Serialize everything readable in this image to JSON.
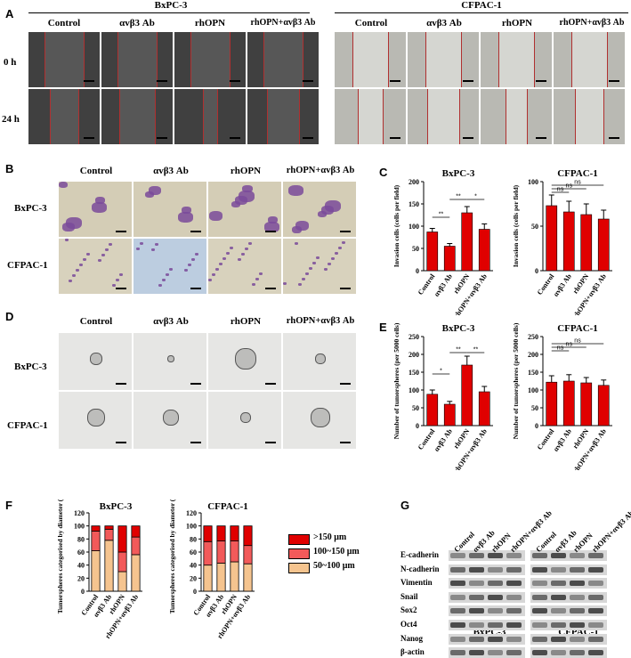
{
  "panel_letters": [
    "A",
    "B",
    "C",
    "D",
    "E",
    "F",
    "G"
  ],
  "panelA": {
    "groups": [
      {
        "cell_line": "BxPC-3",
        "conditions": [
          "Control",
          "αvβ3 Ab",
          "rhOPN",
          "rhOPN+αvβ3 Ab"
        ]
      },
      {
        "cell_line": "CFPAC-1",
        "conditions": [
          "Control",
          "αvβ3 Ab",
          "rhOPN",
          "rhOPN+αvβ3 Ab"
        ]
      }
    ],
    "rows": [
      "0 h",
      "24 h"
    ]
  },
  "panelB": {
    "conditions": [
      "Control",
      "αvβ3 Ab",
      "rhOPN",
      "rhOPN+αvβ3 Ab"
    ],
    "rows": [
      "BxPC-3",
      "CFPAC-1"
    ]
  },
  "panelD": {
    "conditions": [
      "Control",
      "αvβ3 Ab",
      "rhOPN",
      "rhOPN+αvβ3 Ab"
    ],
    "rows": [
      "BxPC-3",
      "CFPAC-1"
    ]
  },
  "panelG": {
    "proteins": [
      "E-cadherin",
      "N-cadherin",
      "Vimentin",
      "Snail",
      "Sox2",
      "Oct4",
      "Nanog",
      "β-actin"
    ],
    "lanes": [
      "Control",
      "αvβ3 Ab",
      "rhOPN",
      "rhOPN+αvβ3 Ab"
    ],
    "cell_lines": [
      "BxPC-3",
      "CFPAC-1"
    ]
  },
  "chart_data": [
    {
      "id": "C-BxPC-3",
      "type": "bar",
      "title": "BxPC-3",
      "ylabel": "Invasion cells (cells per field)",
      "categories": [
        "Control",
        "αvβ3 Ab",
        "rhOPN",
        "rhOPN+αvβ3 Ab"
      ],
      "values": [
        87,
        55,
        130,
        93
      ],
      "errors": [
        8,
        6,
        14,
        12
      ],
      "ylim": [
        0,
        200
      ],
      "yticks": [
        0,
        50,
        100,
        150,
        200
      ],
      "significance": [
        "**",
        "**",
        "*"
      ],
      "color": "#e00000"
    },
    {
      "id": "C-CFPAC-1",
      "type": "bar",
      "title": "CFPAC-1",
      "ylabel": "Invasion cells (cells per field)",
      "categories": [
        "Control",
        "αvβ3 Ab",
        "rhOPN",
        "rhOPN+αvβ3 Ab"
      ],
      "values": [
        73,
        66,
        63,
        58
      ],
      "errors": [
        12,
        12,
        12,
        10
      ],
      "ylim": [
        0,
        100
      ],
      "yticks": [
        0,
        50,
        100
      ],
      "significance": [
        "ns",
        "ns",
        "ns"
      ],
      "color": "#e00000"
    },
    {
      "id": "E-BxPC-3",
      "type": "bar",
      "title": "BxPC-3",
      "ylabel": "Number of tumorspheres (per 5000 cells)",
      "categories": [
        "Control",
        "αvβ3 Ab",
        "rhOPN",
        "rhOPN+αvβ3 Ab"
      ],
      "values": [
        88,
        60,
        170,
        95
      ],
      "errors": [
        12,
        8,
        25,
        15
      ],
      "ylim": [
        0,
        250
      ],
      "yticks": [
        0,
        50,
        100,
        150,
        200,
        250
      ],
      "significance": [
        "*",
        "**",
        "**"
      ],
      "color": "#e00000"
    },
    {
      "id": "E-CFPAC-1",
      "type": "bar",
      "title": "CFPAC-1",
      "ylabel": "Number of tumorspheres (per 5000 cells)",
      "categories": [
        "Control",
        "αvβ3 Ab",
        "rhOPN",
        "rhOPN+αvβ3 Ab"
      ],
      "values": [
        122,
        125,
        120,
        113
      ],
      "errors": [
        18,
        18,
        15,
        15
      ],
      "ylim": [
        0,
        250
      ],
      "yticks": [
        0,
        50,
        100,
        150,
        200,
        250
      ],
      "significance": [
        "ns",
        "ns",
        "ns"
      ],
      "color": "#e00000"
    },
    {
      "id": "F-BxPC-3",
      "type": "bar",
      "stacked": true,
      "title": "BxPC-3",
      "ylabel": "Tumorspheres categorised by diameter (%)",
      "categories": [
        "Control",
        "αvβ3 Ab",
        "rhOPN",
        "rhOPN+αvβ3 Ab"
      ],
      "series": [
        {
          "name": "50~100 μm",
          "values": [
            62,
            78,
            30,
            56
          ],
          "color": "#f5c48f"
        },
        {
          "name": "100~150 μm",
          "values": [
            30,
            17,
            30,
            27
          ],
          "color": "#f25a5a"
        },
        {
          "name": ">150 μm",
          "values": [
            8,
            5,
            40,
            17
          ],
          "color": "#e00000"
        }
      ],
      "ylim": [
        0,
        120
      ],
      "yticks": [
        0,
        20,
        40,
        60,
        80,
        100,
        120
      ]
    },
    {
      "id": "F-CFPAC-1",
      "type": "bar",
      "stacked": true,
      "title": "CFPAC-1",
      "ylabel": "Tumorspheres categorised by diameter (%)",
      "categories": [
        "Control",
        "αvβ3 Ab",
        "rhOPN",
        "rhOPN+αvβ3 Ab"
      ],
      "series": [
        {
          "name": "50~100 μm",
          "values": [
            40,
            43,
            45,
            42
          ],
          "color": "#f5c48f"
        },
        {
          "name": "100~150 μm",
          "values": [
            36,
            34,
            32,
            28
          ],
          "color": "#f25a5a"
        },
        {
          "name": ">150 μm",
          "values": [
            24,
            23,
            23,
            30
          ],
          "color": "#e00000"
        }
      ],
      "ylim": [
        0,
        120
      ],
      "yticks": [
        0,
        20,
        40,
        60,
        80,
        100,
        120
      ]
    }
  ],
  "legendF": [
    ">150 μm",
    "100~150 μm",
    "50~100 μm"
  ],
  "colors": {
    "bar_red": "#e00000",
    "mid_red": "#f25a5a",
    "tan": "#f5c48f",
    "crystal_violet": "#7a4a9a"
  }
}
